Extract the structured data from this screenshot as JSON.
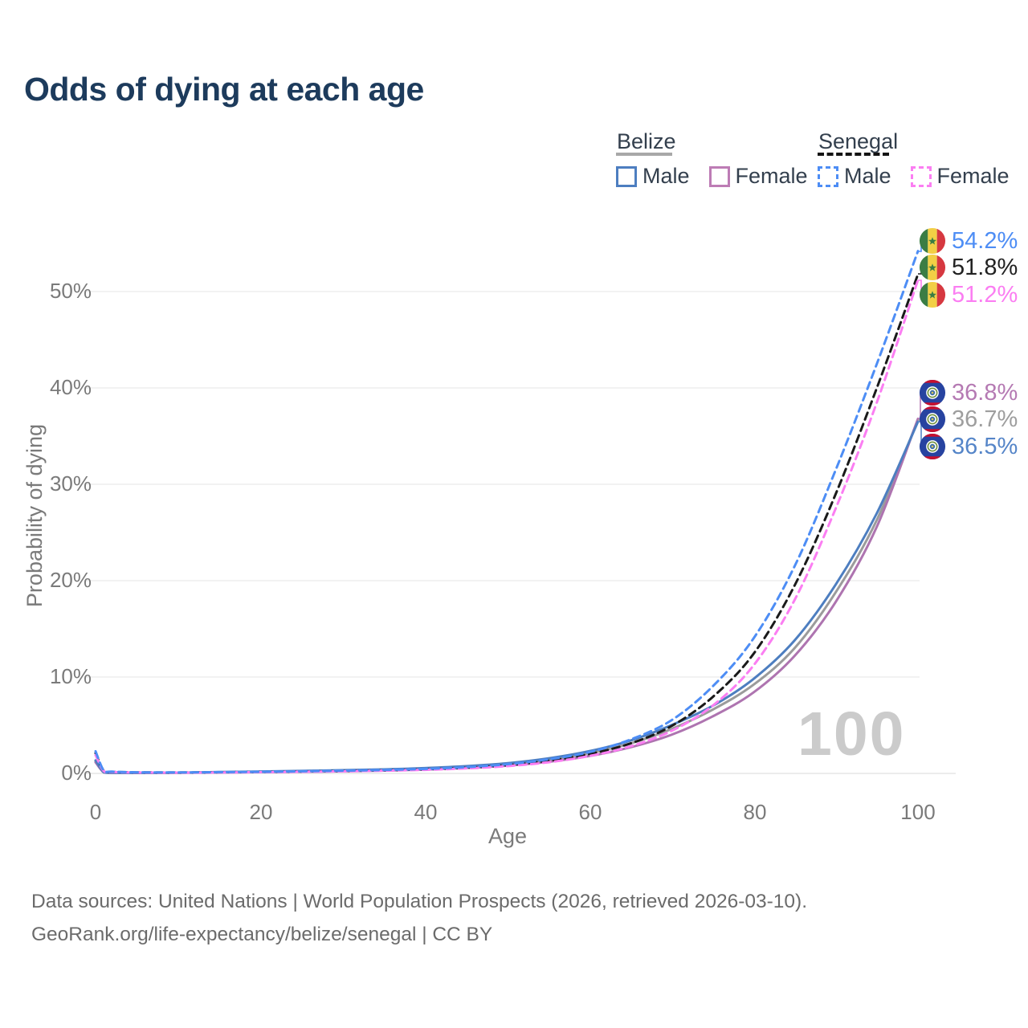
{
  "title": "Odds of dying at each age",
  "ui_colors": {
    "title": "#1d3b5c",
    "axis_text": "#7a7a7a",
    "gridline": "#ededed",
    "watermark": "#cbcbcb",
    "footer_text": "#6b6b6b"
  },
  "legend": {
    "groups": [
      {
        "label": "Belize",
        "line_style": "solid",
        "underline_color": "#a8a8a8",
        "items": [
          {
            "label": "Male",
            "color": "#4d7ec0"
          },
          {
            "label": "Female",
            "color": "#bd7cb5"
          }
        ]
      },
      {
        "label": "Senegal",
        "line_style": "dashed",
        "underline_color": "#141414",
        "items": [
          {
            "label": "Male",
            "color": "#4d8df5"
          },
          {
            "label": "Female",
            "color": "#fb7ef2"
          }
        ]
      }
    ]
  },
  "axes": {
    "y_label": "Probability of dying",
    "y_ticks": [
      "0%",
      "10%",
      "20%",
      "30%",
      "40%",
      "50%"
    ],
    "x_label": "Age",
    "x_ticks": [
      "0",
      "20",
      "40",
      "60",
      "80",
      "100"
    ]
  },
  "watermark": "100",
  "end_labels": [
    {
      "value": "54.2%",
      "country": "Senegal",
      "series": "Male",
      "color": "#4d8df5",
      "flag": "senegal-flag"
    },
    {
      "value": "51.8%",
      "country": "Senegal",
      "series": "Both sexes",
      "color": "#222222",
      "flag": "senegal-flag"
    },
    {
      "value": "51.2%",
      "country": "Senegal",
      "series": "Female",
      "color": "#fb7ef2",
      "flag": "senegal-flag"
    },
    {
      "value": "36.8%",
      "country": "Belize",
      "series": "Female",
      "color": "#b57ab3",
      "flag": "belize-flag"
    },
    {
      "value": "36.7%",
      "country": "Belize",
      "series": "Both sexes",
      "color": "#9e9e9e",
      "flag": "belize-flag"
    },
    {
      "value": "36.5%",
      "country": "Belize",
      "series": "Male",
      "color": "#5585c8",
      "flag": "belize-flag"
    }
  ],
  "footer": {
    "line1": "Data sources: United Nations | World Population Prospects (2026, retrieved 2026-03-10).",
    "line2": "GeoRank.org/life-expectancy/belize/senegal | CC BY"
  },
  "chart_data": {
    "type": "line",
    "title": "Odds of dying at each age",
    "xlabel": "Age",
    "ylabel": "Probability of dying",
    "xlim": [
      0,
      100
    ],
    "ylim_percent": [
      0,
      55
    ],
    "x_ticks": [
      0,
      20,
      40,
      60,
      80,
      100
    ],
    "y_ticks_percent": [
      0,
      10,
      20,
      30,
      40,
      50
    ],
    "grid": "horizontal-only",
    "legend_position": "top-right",
    "ages": [
      0,
      1,
      2,
      5,
      10,
      15,
      20,
      25,
      30,
      35,
      40,
      45,
      50,
      55,
      60,
      65,
      70,
      75,
      80,
      85,
      90,
      95,
      100
    ],
    "series": [
      {
        "name": "Belize Both sexes",
        "country": "Belize",
        "sex": "Both",
        "style": "solid",
        "color": "#9b9b9b",
        "end_value_percent": 36.7,
        "end_label": "36.7%",
        "values_percent": [
          1.25,
          0.11,
          0.06,
          0.055,
          0.07,
          0.12,
          0.17,
          0.22,
          0.28,
          0.36,
          0.48,
          0.66,
          0.95,
          1.4,
          2.1,
          3.1,
          4.6,
          6.6,
          9.2,
          13.0,
          18.8,
          26.3,
          36.7
        ]
      },
      {
        "name": "Belize Female",
        "country": "Belize",
        "sex": "Female",
        "style": "solid",
        "color": "#ae74b0",
        "end_value_percent": 36.8,
        "end_label": "36.8%",
        "values_percent": [
          1.15,
          0.1,
          0.06,
          0.05,
          0.06,
          0.09,
          0.13,
          0.17,
          0.22,
          0.29,
          0.4,
          0.56,
          0.8,
          1.2,
          1.8,
          2.7,
          4.0,
          5.9,
          8.4,
          12.2,
          17.8,
          25.6,
          36.8
        ]
      },
      {
        "name": "Belize Male",
        "country": "Belize",
        "sex": "Male",
        "style": "solid",
        "color": "#4d7ec0",
        "end_value_percent": 36.5,
        "end_label": "36.5%",
        "values_percent": [
          1.35,
          0.12,
          0.07,
          0.06,
          0.08,
          0.14,
          0.2,
          0.26,
          0.33,
          0.42,
          0.55,
          0.75,
          1.05,
          1.55,
          2.3,
          3.4,
          5.0,
          7.0,
          9.8,
          13.8,
          19.6,
          27.0,
          36.5
        ]
      },
      {
        "name": "Senegal Both sexes",
        "country": "Senegal",
        "sex": "Both",
        "style": "dashed",
        "color": "#1a1a1a",
        "end_value_percent": 51.8,
        "end_label": "51.8%",
        "values_percent": [
          2.1,
          0.27,
          0.16,
          0.11,
          0.09,
          0.12,
          0.15,
          0.2,
          0.25,
          0.32,
          0.42,
          0.58,
          0.85,
          1.3,
          2.0,
          3.1,
          4.9,
          7.9,
          12.4,
          19.5,
          29.0,
          40.0,
          51.8
        ]
      },
      {
        "name": "Senegal Female",
        "country": "Senegal",
        "sex": "Female",
        "style": "dashed",
        "color": "#fb7ef2",
        "end_value_percent": 51.2,
        "end_label": "51.2%",
        "values_percent": [
          1.9,
          0.24,
          0.15,
          0.1,
          0.08,
          0.1,
          0.13,
          0.17,
          0.22,
          0.28,
          0.37,
          0.52,
          0.75,
          1.15,
          1.8,
          2.8,
          4.4,
          7.0,
          11.2,
          18.0,
          27.5,
          38.5,
          51.2
        ]
      },
      {
        "name": "Senegal Male",
        "country": "Senegal",
        "sex": "Male",
        "style": "dashed",
        "color": "#4d8df5",
        "end_value_percent": 54.2,
        "end_label": "54.2%",
        "values_percent": [
          2.3,
          0.3,
          0.18,
          0.12,
          0.1,
          0.13,
          0.17,
          0.22,
          0.28,
          0.36,
          0.47,
          0.65,
          0.95,
          1.45,
          2.2,
          3.5,
          5.5,
          9.0,
          14.0,
          21.5,
          31.5,
          42.5,
          54.2
        ]
      }
    ]
  }
}
